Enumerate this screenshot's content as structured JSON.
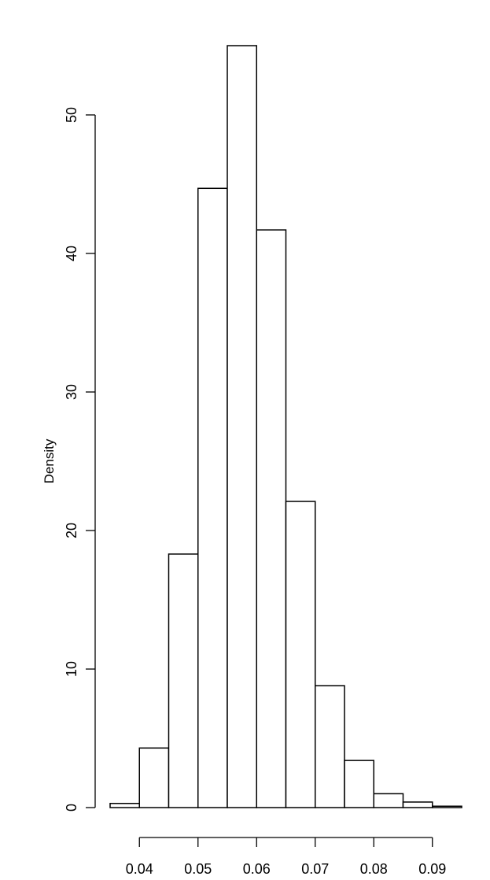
{
  "chart_data": {
    "type": "bar",
    "title": "",
    "xlabel": "",
    "ylabel": "Density",
    "bins": [
      {
        "x0": 0.035,
        "x1": 0.04,
        "density": 0.3
      },
      {
        "x0": 0.04,
        "x1": 0.045,
        "density": 4.3
      },
      {
        "x0": 0.045,
        "x1": 0.05,
        "density": 18.3
      },
      {
        "x0": 0.05,
        "x1": 0.055,
        "density": 44.7
      },
      {
        "x0": 0.055,
        "x1": 0.06,
        "density": 55.0
      },
      {
        "x0": 0.06,
        "x1": 0.065,
        "density": 41.7
      },
      {
        "x0": 0.065,
        "x1": 0.07,
        "density": 22.1
      },
      {
        "x0": 0.07,
        "x1": 0.075,
        "density": 8.8
      },
      {
        "x0": 0.075,
        "x1": 0.08,
        "density": 3.4
      },
      {
        "x0": 0.08,
        "x1": 0.085,
        "density": 1.0
      },
      {
        "x0": 0.085,
        "x1": 0.09,
        "density": 0.4
      },
      {
        "x0": 0.09,
        "x1": 0.095,
        "density": 0.1
      }
    ],
    "x_ticks": [
      0.04,
      0.05,
      0.06,
      0.07,
      0.08,
      0.09
    ],
    "x_tick_labels": [
      "0.04",
      "0.05",
      "0.06",
      "0.07",
      "0.08",
      "0.09"
    ],
    "y_ticks": [
      0,
      10,
      20,
      30,
      40,
      50
    ],
    "y_tick_labels": [
      "0",
      "10",
      "20",
      "30",
      "40",
      "50"
    ],
    "xlim": [
      0.035,
      0.095
    ],
    "ylim": [
      0,
      55
    ],
    "grid": false,
    "legend": "none",
    "colors": {
      "bar_fill": "#ffffff",
      "bar_stroke": "#000000",
      "axis": "#000000"
    }
  }
}
